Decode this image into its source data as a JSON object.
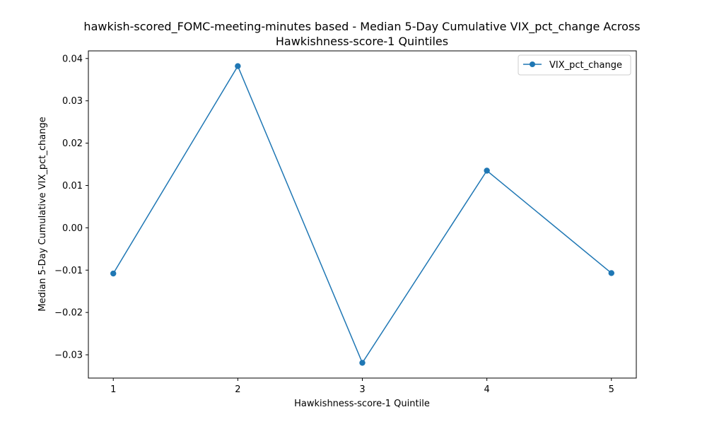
{
  "chart_data": {
    "type": "line",
    "title_line1": "hawkish-scored_FOMC-meeting-minutes based - Median 5-Day Cumulative VIX_pct_change Across",
    "title_line2": "Hawkishness-score-1 Quintiles",
    "xlabel": "Hawkishness-score-1 Quintile",
    "ylabel": "Median 5-Day Cumulative VIX_pct_change",
    "x": [
      1,
      2,
      3,
      4,
      5
    ],
    "xticks": [
      "1",
      "2",
      "3",
      "4",
      "5"
    ],
    "yticks": [
      "−0.03",
      "−0.02",
      "−0.01",
      "0.00",
      "0.01",
      "0.02",
      "0.03",
      "0.04"
    ],
    "ytick_values": [
      -0.03,
      -0.02,
      -0.01,
      0.0,
      0.01,
      0.02,
      0.03,
      0.04
    ],
    "xlim": [
      0.8,
      5.2
    ],
    "ylim": [
      -0.0355,
      0.0418
    ],
    "grid": false,
    "legend_position": "top-right",
    "series": [
      {
        "name": "VIX_pct_change",
        "color": "#1f77b4",
        "marker": "circle",
        "values": [
          -0.0108,
          0.0382,
          -0.0319,
          0.0135,
          -0.0107
        ]
      }
    ]
  }
}
